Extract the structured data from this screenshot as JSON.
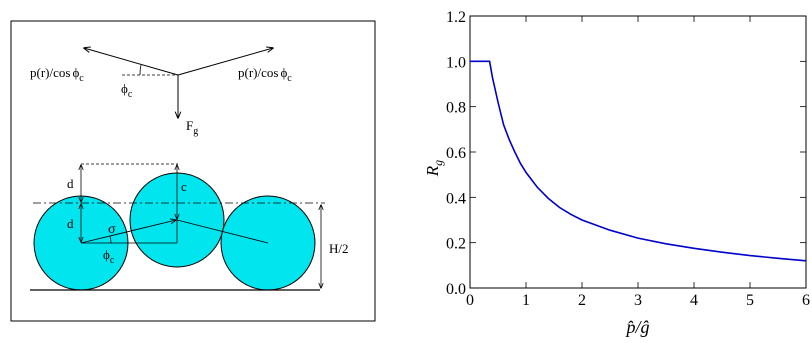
{
  "diagram": {
    "force_left": "p(r)/cos",
    "force_right": "p(r)/cos",
    "phi_symbol": "ϕ",
    "phi_sub": "c",
    "gravity_label": "F",
    "gravity_sub": "g",
    "label_d_upper": "d",
    "label_d_lower": "d",
    "label_c": "c",
    "label_sigma": "σ",
    "label_half_height": "H/2"
  },
  "chart_data": {
    "type": "line",
    "ylabel_main": "R",
    "ylabel_sub": "g",
    "xlabel": "p̂/ĝ",
    "xlim": [
      0,
      6
    ],
    "ylim": [
      0,
      1.2
    ],
    "x_ticks": [
      "0",
      "1",
      "2",
      "3",
      "4",
      "5",
      "6"
    ],
    "y_ticks": [
      "0.0",
      "0.2",
      "0.4",
      "0.6",
      "0.8",
      "1.0",
      "1.2"
    ],
    "x_tick_values": [
      0,
      1,
      2,
      3,
      4,
      5,
      6
    ],
    "y_tick_values": [
      0,
      0.2,
      0.4,
      0.6,
      0.8,
      1.0,
      1.2
    ],
    "grid": false,
    "line_color": "#0000cc",
    "series": [
      {
        "x": [
          0,
          0.3,
          0.35,
          0.4,
          0.5,
          0.6,
          0.7,
          0.8,
          0.9,
          1.0,
          1.2,
          1.4,
          1.6,
          1.8,
          2.0,
          2.5,
          3.0,
          3.5,
          4.0,
          4.5,
          5.0,
          5.5,
          6.0
        ],
        "y": [
          1.0,
          1.0,
          1.0,
          0.93,
          0.82,
          0.72,
          0.655,
          0.6,
          0.55,
          0.51,
          0.445,
          0.395,
          0.355,
          0.325,
          0.3,
          0.255,
          0.22,
          0.195,
          0.175,
          0.158,
          0.143,
          0.131,
          0.12
        ]
      }
    ]
  }
}
